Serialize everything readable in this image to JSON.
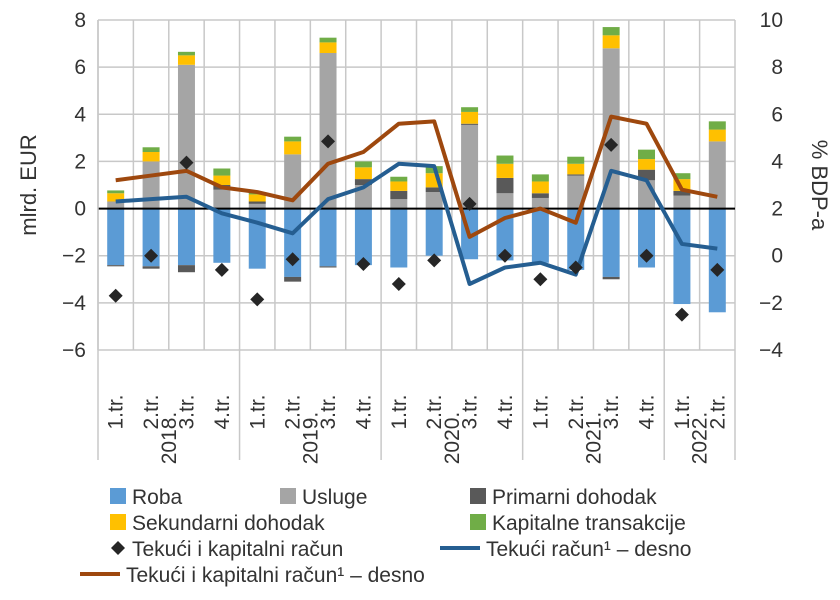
{
  "chart_data": {
    "type": "bar",
    "ylabel": "mlrd. EUR",
    "y2label": "% BDP-a",
    "ylim": [
      -6,
      8
    ],
    "y2lim": [
      -4,
      10
    ],
    "yticks": [
      "−6",
      "−4",
      "−2",
      "0",
      "2",
      "4",
      "6",
      "8"
    ],
    "y2ticks": [
      "−4",
      "−2",
      "0",
      "2",
      "4",
      "6",
      "8",
      "10"
    ],
    "quarters": [
      "1.tr.",
      "2.tr.",
      "3.tr.",
      "4.tr.",
      "1.tr.",
      "2.tr.",
      "3.tr.",
      "4.tr.",
      "1.tr.",
      "2.tr.",
      "3.tr.",
      "4.tr.",
      "1.tr.",
      "2.tr.",
      "3.tr.",
      "4.tr.",
      "1.tr.",
      "2.tr."
    ],
    "years": [
      {
        "label": "2018.",
        "count": 4
      },
      {
        "label": "2019.",
        "count": 4
      },
      {
        "label": "2020.",
        "count": 4
      },
      {
        "label": "2021.",
        "count": 4
      },
      {
        "label": "2022.",
        "count": 2
      }
    ],
    "stacked_series": [
      {
        "name": "Roba",
        "color": "#5b9bd5",
        "values": [
          -2.4,
          -2.45,
          -2.4,
          -2.3,
          -2.55,
          -2.9,
          -2.45,
          -2.4,
          -2.5,
          -2.0,
          -2.15,
          -2.2,
          -2.3,
          -2.6,
          -2.9,
          -2.5,
          -4.05,
          -4.4
        ]
      },
      {
        "name": "Usluge",
        "color": "#a5a5a5",
        "values": [
          0.3,
          2.0,
          6.1,
          0.8,
          0.2,
          2.3,
          6.6,
          1.0,
          0.4,
          0.7,
          3.55,
          0.65,
          0.45,
          1.4,
          6.8,
          1.2,
          0.55,
          2.85
        ]
      },
      {
        "name": "Primarni dohodak",
        "color": "#595959",
        "values": [
          -0.05,
          -0.1,
          -0.3,
          0.2,
          0.1,
          -0.2,
          -0.05,
          0.25,
          0.35,
          0.2,
          0.05,
          0.65,
          0.2,
          0.05,
          -0.1,
          0.45,
          0.2,
          0.0
        ]
      },
      {
        "name": "Sekundarni dohodak",
        "color": "#ffc000",
        "values": [
          0.35,
          0.4,
          0.4,
          0.4,
          0.3,
          0.55,
          0.45,
          0.5,
          0.4,
          0.6,
          0.5,
          0.6,
          0.5,
          0.45,
          0.55,
          0.45,
          0.5,
          0.5
        ]
      },
      {
        "name": "Kapitalne transakcije",
        "color": "#70ad47",
        "values": [
          0.12,
          0.2,
          0.15,
          0.3,
          0.1,
          0.2,
          0.2,
          0.25,
          0.2,
          0.3,
          0.2,
          0.35,
          0.3,
          0.3,
          0.35,
          0.4,
          0.25,
          0.35
        ]
      }
    ],
    "diamond_series": {
      "name": "Tekući i kapitalni račun",
      "color": "#262626",
      "values": [
        -3.7,
        -2.0,
        1.95,
        -2.6,
        -3.85,
        -2.15,
        2.85,
        -2.35,
        -3.2,
        -2.2,
        0.2,
        -2.0,
        -3.0,
        -2.5,
        2.7,
        -2.0,
        -4.5,
        -2.6
      ]
    },
    "line_series": [
      {
        "name": "Tekući račun¹ – desno",
        "color": "#255e91",
        "axis": "right",
        "values": [
          2.3,
          2.4,
          2.5,
          1.8,
          1.4,
          0.95,
          2.4,
          2.9,
          3.9,
          3.8,
          -1.2,
          -0.5,
          -0.3,
          -0.8,
          3.6,
          3.2,
          0.5,
          0.3
        ]
      },
      {
        "name": "Tekući i kapitalni račun¹ – desno",
        "color": "#9e480e",
        "axis": "right",
        "values": [
          3.2,
          3.4,
          3.6,
          2.9,
          2.7,
          2.35,
          3.9,
          4.4,
          5.6,
          5.7,
          0.8,
          1.6,
          2.0,
          1.4,
          5.9,
          5.6,
          2.8,
          2.5
        ]
      }
    ],
    "grid": true,
    "legend_position": "bottom"
  }
}
